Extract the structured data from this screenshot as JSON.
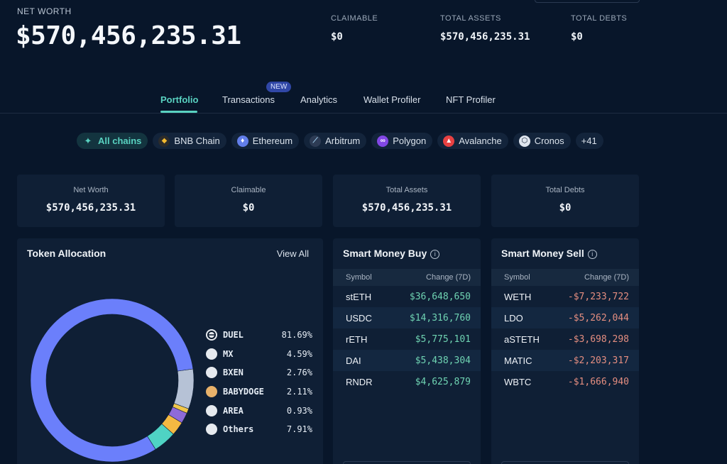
{
  "header": {
    "net_worth_label": "NET WORTH",
    "net_worth_value": "$570,456,235.31",
    "claimable_label": "CLAIMABLE",
    "claimable_value": "$0",
    "total_assets_label": "TOTAL ASSETS",
    "total_assets_value": "$570,456,235.31",
    "total_debts_label": "TOTAL DEBTS",
    "total_debts_value": "$0"
  },
  "tabs": [
    {
      "label": "Portfolio",
      "active": true
    },
    {
      "label": "Transactions",
      "badge": "NEW"
    },
    {
      "label": "Analytics"
    },
    {
      "label": "Wallet Profiler"
    },
    {
      "label": "NFT Profiler"
    }
  ],
  "chains": [
    {
      "label": "All chains",
      "icon": "all-chains-icon",
      "active": true
    },
    {
      "label": "BNB Chain",
      "icon": "bnb-icon"
    },
    {
      "label": "Ethereum",
      "icon": "ethereum-icon"
    },
    {
      "label": "Arbitrum",
      "icon": "arbitrum-icon"
    },
    {
      "label": "Polygon",
      "icon": "polygon-icon"
    },
    {
      "label": "Avalanche",
      "icon": "avalanche-icon"
    },
    {
      "label": "Cronos",
      "icon": "cronos-icon"
    },
    {
      "label": "+41"
    }
  ],
  "cards": [
    {
      "label": "Net Worth",
      "value": "$570,456,235.31"
    },
    {
      "label": "Claimable",
      "value": "$0"
    },
    {
      "label": "Total Assets",
      "value": "$570,456,235.31"
    },
    {
      "label": "Total Debts",
      "value": "$0"
    }
  ],
  "token_allocation": {
    "title": "Token Allocation",
    "view_all": "View All",
    "items": [
      {
        "name": "DUEL",
        "pct": "81.69%",
        "value": 81.69,
        "color": "#6b7ffb"
      },
      {
        "name": "MX",
        "pct": "4.59%",
        "value": 4.59,
        "color": "#4fd3c4"
      },
      {
        "name": "BXEN",
        "pct": "2.76%",
        "value": 2.76,
        "color": "#f4b942"
      },
      {
        "name": "BABYDOGE",
        "pct": "2.11%",
        "value": 2.11,
        "color": "#8e6ad8"
      },
      {
        "name": "AREA",
        "pct": "0.93%",
        "value": 0.93,
        "color": "#f0c64a"
      },
      {
        "name": "Others",
        "pct": "7.91%",
        "value": 7.91,
        "color": "#b6c2d6"
      }
    ]
  },
  "smart_buy": {
    "title": "Smart Money Buy",
    "col_symbol": "Symbol",
    "col_change": "Change (7D)",
    "rows": [
      {
        "symbol": "stETH",
        "change": "$36,648,650"
      },
      {
        "symbol": "USDC",
        "change": "$14,316,760"
      },
      {
        "symbol": "rETH",
        "change": "$5,775,101"
      },
      {
        "symbol": "DAI",
        "change": "$5,438,304"
      },
      {
        "symbol": "RNDR",
        "change": "$4,625,879"
      }
    ]
  },
  "smart_sell": {
    "title": "Smart Money Sell",
    "col_symbol": "Symbol",
    "col_change": "Change (7D)",
    "rows": [
      {
        "symbol": "WETH",
        "change": "-$7,233,722"
      },
      {
        "symbol": "LDO",
        "change": "-$5,262,044"
      },
      {
        "symbol": "aSTETH",
        "change": "-$3,698,298"
      },
      {
        "symbol": "MATIC",
        "change": "-$2,203,317"
      },
      {
        "symbol": "WBTC",
        "change": "-$1,666,940"
      }
    ]
  }
}
